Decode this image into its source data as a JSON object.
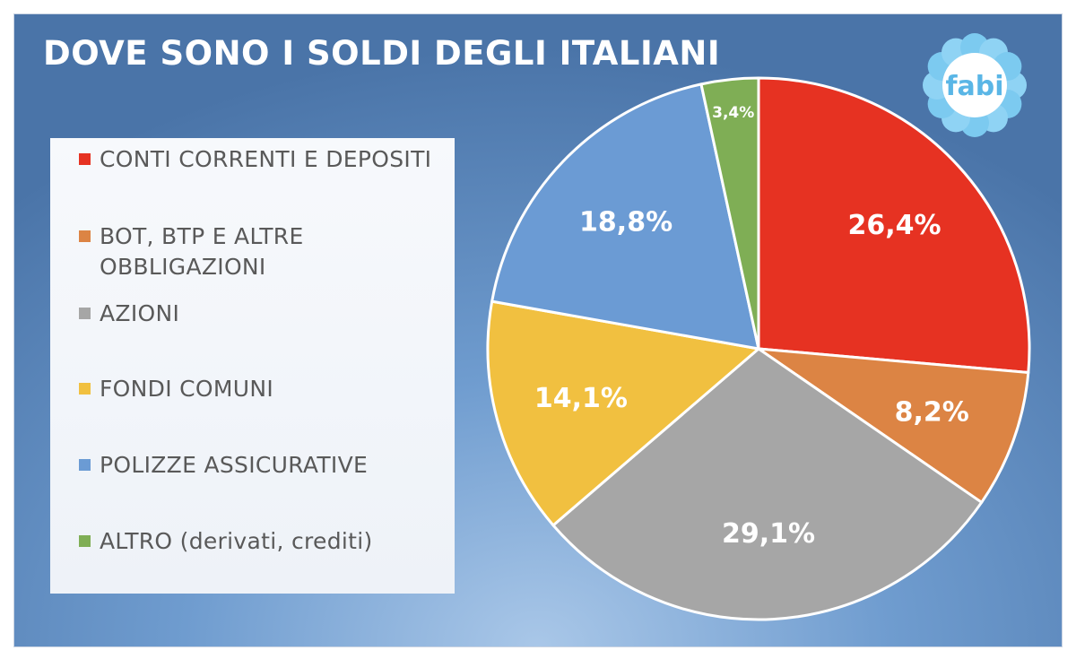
{
  "title": "DOVE SONO I SOLDI DEGLI ITALIANI",
  "logo": {
    "text": "fabi",
    "icon": "flower-logo-icon"
  },
  "chart_data": {
    "type": "pie",
    "title": "DOVE SONO I SOLDI DEGLI ITALIANI",
    "legend_position": "left",
    "slices": [
      {
        "label": "CONTI CORRENTI E DEPOSITI",
        "value": 26.4,
        "display": "26,4%",
        "color": "#e63222"
      },
      {
        "label": "BOT, BTP E ALTRE OBBLIGAZIONI",
        "value": 8.2,
        "display": "8,2%",
        "color": "#dc8444"
      },
      {
        "label": "AZIONI",
        "value": 29.1,
        "display": "29,1%",
        "color": "#a6a6a6"
      },
      {
        "label": "FONDI COMUNI",
        "value": 14.1,
        "display": "14,1%",
        "color": "#f1c040"
      },
      {
        "label": "POLIZZE ASSICURATIVE",
        "value": 18.8,
        "display": "18,8%",
        "color": "#6b9bd4"
      },
      {
        "label": "ALTRO (derivati, crediti)",
        "value": 3.4,
        "display": "3,4%",
        "color": "#7fae55"
      }
    ]
  }
}
